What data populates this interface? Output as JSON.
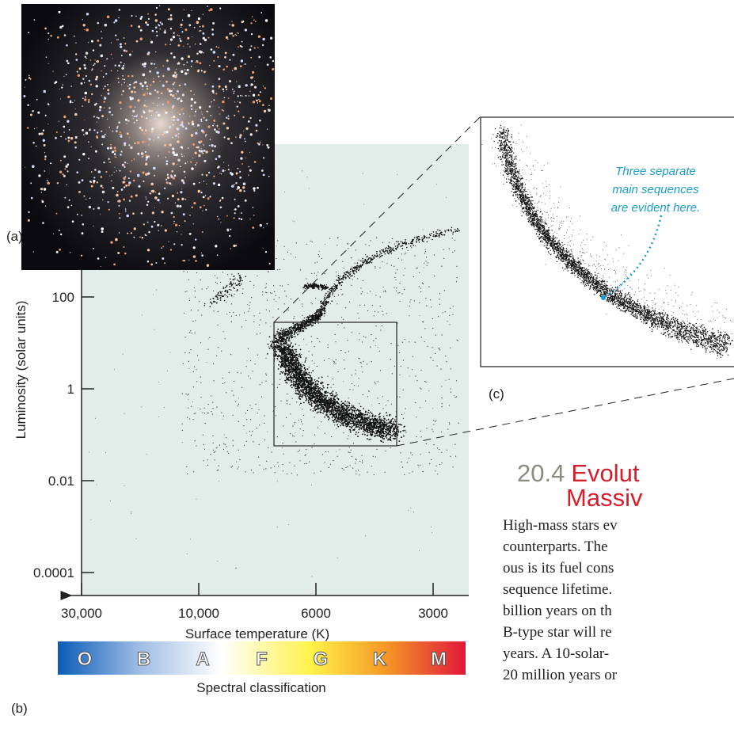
{
  "figure": {
    "panel_labels": [
      "(a)",
      "(b)",
      "(c)"
    ],
    "hr_diagram": {
      "y_label": "Luminosity (solar units)",
      "x_label": "Surface temperature (K)",
      "yticks": [
        100,
        1,
        0.01,
        0.0001
      ],
      "xticks": [
        {
          "value": 30000,
          "label": "30,000"
        },
        {
          "value": 10000,
          "label": "10,000"
        },
        6000,
        3000
      ]
    },
    "spectral_bar": {
      "classes": [
        "O",
        "B",
        "A",
        "F",
        "G",
        "K",
        "M"
      ],
      "label": "Spectral classification"
    },
    "annotation": [
      "Three separate",
      "main sequences",
      "are evident here."
    ]
  },
  "section": {
    "number": "20.4",
    "title": [
      "Evolut",
      "Massiv"
    ],
    "body": [
      "High-mass stars ev",
      "counterparts. The",
      "ous is its fuel cons",
      "sequence lifetime.",
      "billion years on th",
      "B-type star will re",
      "years. A 10-solar-",
      "20 million years or"
    ]
  }
}
